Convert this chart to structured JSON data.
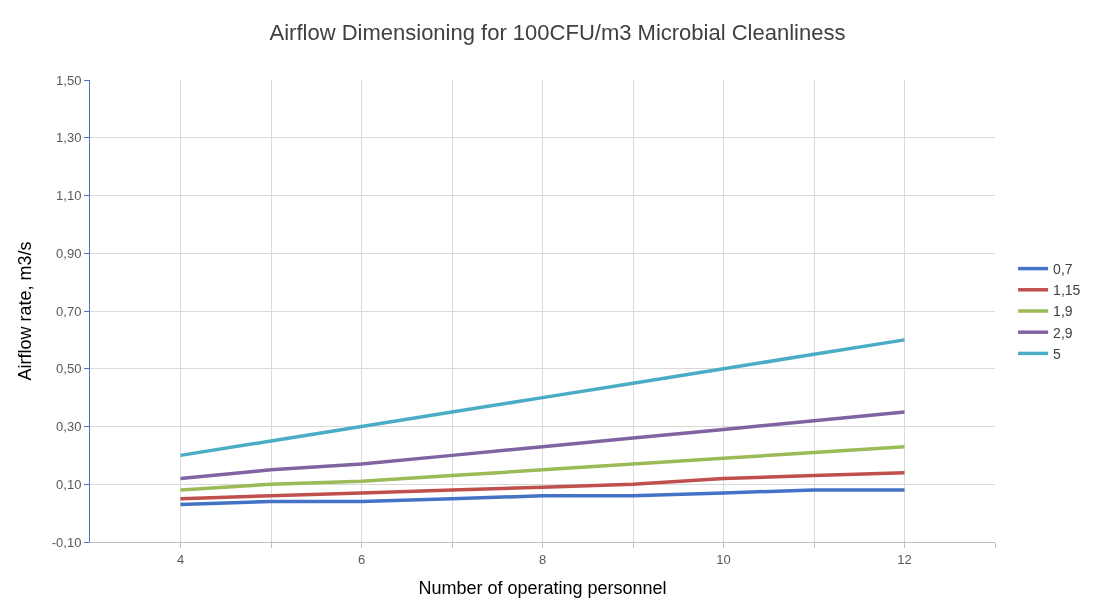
{
  "chart_data": {
    "type": "line",
    "title": "Airflow Dimensioning for 100CFU/m3 Microbial Cleanliness",
    "xlabel": "Number of operating personnel",
    "ylabel": "Airflow rate, m3/s",
    "x": [
      4,
      5,
      6,
      7,
      8,
      9,
      10,
      11,
      12
    ],
    "series": [
      {
        "name": "0,7",
        "color": "#4472c4",
        "values": [
          0.03,
          0.04,
          0.04,
          0.05,
          0.06,
          0.06,
          0.07,
          0.08,
          0.08
        ]
      },
      {
        "name": "1,15",
        "color": "#c0504d",
        "values": [
          0.05,
          0.06,
          0.07,
          0.08,
          0.09,
          0.1,
          0.12,
          0.13,
          0.14
        ]
      },
      {
        "name": "1,9",
        "color": "#9bbb59",
        "values": [
          0.08,
          0.1,
          0.11,
          0.13,
          0.15,
          0.17,
          0.19,
          0.21,
          0.23
        ]
      },
      {
        "name": "2,9",
        "color": "#8064a2",
        "values": [
          0.12,
          0.15,
          0.17,
          0.2,
          0.23,
          0.26,
          0.29,
          0.32,
          0.35
        ]
      },
      {
        "name": "5",
        "color": "#4bacc6",
        "values": [
          0.2,
          0.25,
          0.3,
          0.35,
          0.4,
          0.45,
          0.5,
          0.55,
          0.6
        ]
      }
    ],
    "xlim": [
      3,
      13
    ],
    "xticks": [
      4,
      {
        "value": 5,
        "label": null
      },
      6,
      {
        "value": 7,
        "label": null
      },
      8,
      {
        "value": 9,
        "label": null
      },
      10,
      {
        "value": 11,
        "label": null
      },
      12,
      {
        "value": 13,
        "label": null
      }
    ],
    "ylim": [
      -0.1,
      1.5
    ],
    "yticks": [
      {
        "value": -0.1,
        "label": "-0,10"
      },
      {
        "value": 0.1,
        "label": "0,10"
      },
      {
        "value": 0.3,
        "label": "0,30"
      },
      {
        "value": 0.5,
        "label": "0,50"
      },
      {
        "value": 0.7,
        "label": "0,70"
      },
      {
        "value": 0.9,
        "label": "0,90"
      },
      {
        "value": 1.1,
        "label": "1,10"
      },
      {
        "value": 1.3,
        "label": "1,30"
      },
      {
        "value": 1.5,
        "label": "1,50"
      }
    ],
    "grid": true,
    "legend": "right",
    "marker": "none",
    "line_style": "solid"
  }
}
